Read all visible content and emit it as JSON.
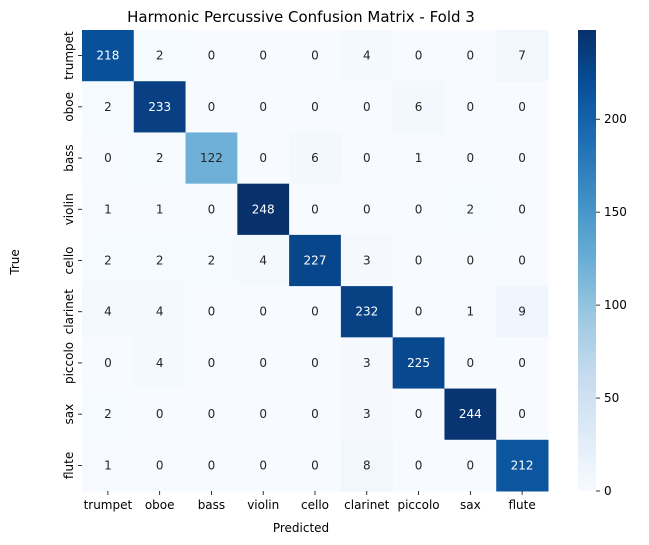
{
  "chart_data": {
    "type": "heatmap",
    "title": "Harmonic Percussive Confusion Matrix - Fold 3",
    "xlabel": "Predicted",
    "ylabel": "True",
    "x_categories": [
      "trumpet",
      "oboe",
      "bass",
      "violin",
      "cello",
      "clarinet",
      "piccolo",
      "sax",
      "flute"
    ],
    "y_categories": [
      "trumpet",
      "oboe",
      "bass",
      "violin",
      "cello",
      "clarinet",
      "piccolo",
      "sax",
      "flute"
    ],
    "values": [
      [
        218,
        2,
        0,
        0,
        0,
        4,
        0,
        0,
        7
      ],
      [
        2,
        233,
        0,
        0,
        0,
        0,
        6,
        0,
        0
      ],
      [
        0,
        2,
        122,
        0,
        6,
        0,
        1,
        0,
        0
      ],
      [
        1,
        1,
        0,
        248,
        0,
        0,
        0,
        2,
        0
      ],
      [
        2,
        2,
        2,
        4,
        227,
        3,
        0,
        0,
        0
      ],
      [
        4,
        4,
        0,
        0,
        0,
        232,
        0,
        1,
        9
      ],
      [
        0,
        4,
        0,
        0,
        0,
        3,
        225,
        0,
        0
      ],
      [
        2,
        0,
        0,
        0,
        0,
        3,
        0,
        244,
        0
      ],
      [
        1,
        0,
        0,
        0,
        0,
        8,
        0,
        0,
        212
      ]
    ],
    "colormap": "Blues",
    "vmin": 0,
    "vmax": 248,
    "colorbar_ticks": [
      0,
      50,
      100,
      150,
      200
    ]
  }
}
